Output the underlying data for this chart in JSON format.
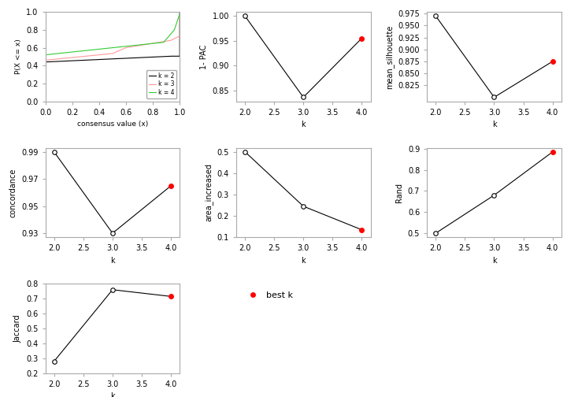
{
  "k_values": [
    2,
    3,
    4
  ],
  "one_minus_pac": [
    1.0,
    0.836,
    0.955
  ],
  "mean_silhouette": [
    0.97,
    0.8,
    0.875
  ],
  "concordance": [
    0.99,
    0.93,
    0.965
  ],
  "area_increased": [
    0.5,
    0.245,
    0.135
  ],
  "rand": [
    0.5,
    0.68,
    0.885
  ],
  "jaccard": [
    0.28,
    0.76,
    0.715
  ],
  "best_k": 4,
  "legend_best_k": "best k",
  "background_color": "#ffffff",
  "ecdf_colors": [
    "#000000",
    "#ff9999",
    "#33cc33"
  ]
}
